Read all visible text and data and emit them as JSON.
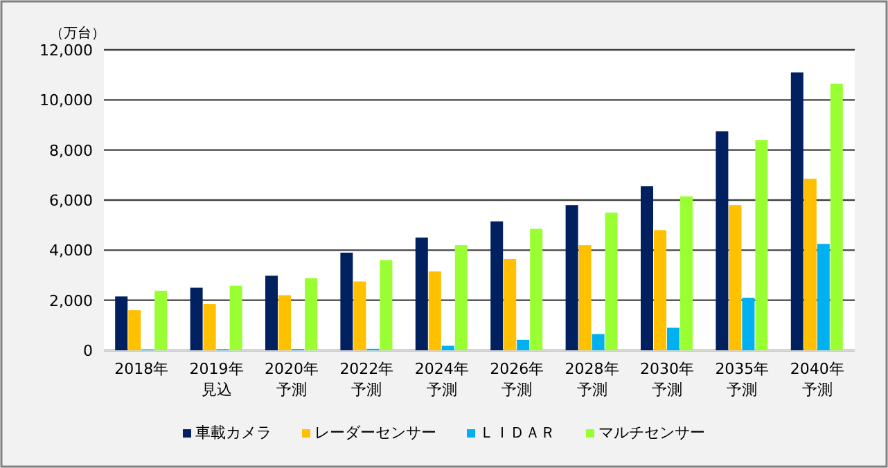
{
  "chart_data": {
    "type": "bar",
    "ylabel": "（万台）",
    "categories": [
      "2018年",
      "2019年見込",
      "2020年予測",
      "2022年予測",
      "2024年予測",
      "2026年予測",
      "2028年予測",
      "2030年予測",
      "2035年予測",
      "2040年予測"
    ],
    "series": [
      {
        "name": "車載カメラ",
        "color": "#002060",
        "values": [
          2150,
          2500,
          2980,
          3900,
          4500,
          5150,
          5800,
          6550,
          8750,
          11100
        ]
      },
      {
        "name": "レーダーセンサー",
        "color": "#ffc000",
        "values": [
          1600,
          1850,
          2200,
          2750,
          3150,
          3650,
          4200,
          4800,
          5800,
          6850
        ]
      },
      {
        "name": "ＬＩＤＡＲ",
        "color": "#00b0f0",
        "values": [
          30,
          40,
          50,
          60,
          180,
          420,
          650,
          900,
          2100,
          4250
        ]
      },
      {
        "name": "マルチセンサー",
        "color": "#99ff33",
        "values": [
          2380,
          2580,
          2880,
          3600,
          4200,
          4850,
          5500,
          6150,
          8400,
          10650
        ]
      }
    ],
    "ylim": [
      0,
      12000
    ],
    "yticks": [
      {
        "value": 0,
        "label": "0"
      },
      {
        "value": 2000,
        "label": "2,000"
      },
      {
        "value": 4000,
        "label": "4,000"
      },
      {
        "value": 6000,
        "label": "6,000"
      },
      {
        "value": 8000,
        "label": "8,000"
      },
      {
        "value": 10000,
        "label": "10,000"
      },
      {
        "value": 12000,
        "label": "12,000"
      }
    ],
    "grid": "y",
    "legend": "bottom"
  }
}
